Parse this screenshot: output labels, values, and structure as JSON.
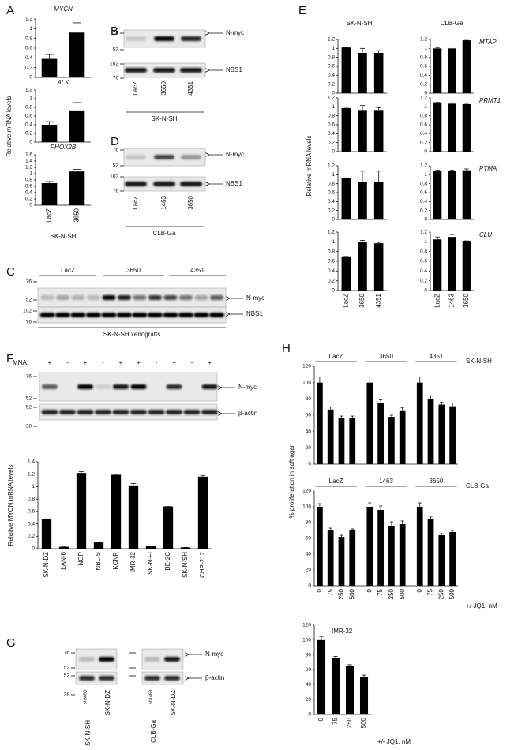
{
  "panel_labels": [
    "A",
    "B",
    "C",
    "D",
    "E",
    "F",
    "G",
    "H"
  ],
  "chart_data": [
    {
      "type": "bar",
      "title": "MYCN",
      "values": [
        0.38,
        0.92
      ],
      "errors": [
        0.09,
        0.2
      ],
      "ylim": [
        0,
        1.2
      ],
      "yticks": [
        0,
        0.2,
        0.4,
        0.6,
        0.8,
        1,
        1.2
      ]
    },
    {
      "type": "bar",
      "title": "ALK",
      "ylabel": "Relative mRNA levels",
      "values": [
        0.4,
        0.73
      ],
      "errors": [
        0.07,
        0.18
      ],
      "ylim": [
        0,
        1.2
      ],
      "yticks": [
        0,
        0.2,
        0.4,
        0.6,
        0.8,
        1,
        1.2
      ]
    },
    {
      "type": "bar",
      "title": "PHOX2B",
      "categories": [
        "LacZ",
        "3650"
      ],
      "xlabel": "SK-N-SH",
      "values": [
        0.7,
        1.07
      ],
      "errors": [
        0.05,
        0.07
      ],
      "ylim": [
        0,
        1.6
      ],
      "yticks": [
        0,
        0.2,
        0.4,
        0.6,
        0.8,
        1,
        1.2,
        1.4,
        1.6
      ]
    },
    {
      "type": "bar",
      "column_title": "SK-N-SH",
      "values": [
        1.02,
        0.9,
        0.9
      ],
      "errors": [
        0,
        0.1,
        0.05
      ],
      "ylim": [
        0,
        1.2
      ],
      "yticks": [
        0,
        0.2,
        0.4,
        0.6,
        0.8,
        1,
        1.2
      ]
    },
    {
      "type": "bar",
      "column_title": "CLB-Ga",
      "title": "MTAP",
      "values": [
        1.0,
        1.0,
        1.18
      ],
      "errors": [
        0.02,
        0.03,
        0
      ],
      "ylim": [
        0,
        1.2
      ],
      "yticks": [
        0,
        0.2,
        0.4,
        0.6,
        0.8,
        1,
        1.2
      ]
    },
    {
      "type": "bar",
      "ylabel": "Relative mRNA levels",
      "values": [
        0.97,
        0.93,
        0.93
      ],
      "errors": [
        0,
        0.1,
        0.05
      ],
      "ylim": [
        0,
        1.2
      ],
      "yticks": [
        0,
        0.2,
        0.4,
        0.6,
        0.8,
        1,
        1.2
      ]
    },
    {
      "type": "bar",
      "title": "PRMT1",
      "values": [
        1.1,
        1.07,
        1.06
      ],
      "errors": [
        0,
        0.02,
        0.02
      ],
      "ylim": [
        0,
        1.2
      ],
      "yticks": [
        0,
        0.2,
        0.4,
        0.6,
        0.8,
        1,
        1.2
      ]
    },
    {
      "type": "bar",
      "values": [
        0.93,
        0.83,
        0.83
      ],
      "errors": [
        0,
        0.25,
        0.25
      ],
      "ylim": [
        0,
        1.2
      ],
      "yticks": [
        0,
        0.2,
        0.4,
        0.6,
        0.8,
        1,
        1.2
      ]
    },
    {
      "type": "bar",
      "title": "PTMA",
      "values": [
        1.08,
        1.08,
        1.1
      ],
      "errors": [
        0.02,
        0.02,
        0.03
      ],
      "ylim": [
        0,
        1.2
      ],
      "yticks": [
        0,
        0.2,
        0.4,
        0.6,
        0.8,
        1,
        1.2
      ]
    },
    {
      "type": "bar",
      "categories": [
        "LacZ",
        "3650",
        "4351"
      ],
      "values": [
        0.7,
        1.0,
        0.97
      ],
      "errors": [
        0,
        0.03,
        0.02
      ],
      "ylim": [
        0,
        1.2
      ],
      "yticks": [
        0,
        0.2,
        0.4,
        0.6,
        0.8,
        1,
        1.2
      ]
    },
    {
      "type": "bar",
      "title": "CLU",
      "categories": [
        "LacZ",
        "1463",
        "3650"
      ],
      "values": [
        1.05,
        1.1,
        1.02
      ],
      "errors": [
        0.05,
        0.05,
        0
      ],
      "ylim": [
        0,
        1.2
      ],
      "yticks": [
        0,
        0.2,
        0.4,
        0.6,
        0.8,
        1,
        1.2
      ]
    },
    {
      "type": "bar",
      "ylabel": "Relative MYCN mRNA levels",
      "categories": [
        "SK-N-DZ",
        "LAN-6",
        "NGP",
        "NBL-S",
        "KCNR",
        "IMR-32",
        "SK-N-FI",
        "BE-2C",
        "SK-N-SH",
        "CHP-212"
      ],
      "values": [
        0.48,
        0.03,
        1.22,
        0.1,
        1.19,
        1.02,
        0.04,
        0.68,
        0.02,
        1.16
      ],
      "errors": [
        0,
        0,
        0.02,
        0,
        0.01,
        0.03,
        0,
        0,
        0,
        0.02
      ],
      "ylim": [
        0,
        1.4
      ],
      "yticks": [
        0,
        0.2,
        0.4,
        0.6,
        0.8,
        1,
        1.2,
        1.4
      ]
    },
    {
      "type": "bar",
      "title": "SK-N-SH",
      "groups": [
        "LacZ",
        "3650",
        "4351"
      ],
      "values": [
        100,
        67,
        57,
        57,
        100,
        75,
        58,
        66,
        100,
        80,
        73,
        71
      ],
      "errors": [
        7,
        3,
        2,
        2,
        7,
        4,
        2,
        3,
        7,
        4,
        3,
        4
      ],
      "ylim": [
        0,
        120
      ],
      "yticks": [
        0,
        20,
        40,
        60,
        80,
        100,
        120
      ]
    },
    {
      "type": "bar",
      "title": "CLB-Ga",
      "ylabel": "% proliferation in soft agar",
      "xlabel": "+/-JQ1, nM",
      "groups": [
        "LacZ",
        "1463",
        "3650"
      ],
      "categories": [
        "0",
        "75",
        "250",
        "500",
        "0",
        "75",
        "250",
        "500",
        "0",
        "75",
        "250",
        "500"
      ],
      "values": [
        100,
        71,
        62,
        71,
        100,
        96,
        76,
        78,
        100,
        84,
        64,
        68
      ],
      "errors": [
        4,
        2,
        2,
        1,
        5,
        5,
        5,
        4,
        5,
        3,
        2,
        2
      ],
      "ylim": [
        0,
        120
      ],
      "yticks": [
        0,
        20,
        40,
        60,
        80,
        100,
        120
      ]
    },
    {
      "type": "bar",
      "title": "IMR-32",
      "xlabel": "+/- JQ1, nM",
      "categories": [
        "0",
        "75",
        "250",
        "500"
      ],
      "values": [
        100,
        76,
        65,
        51
      ],
      "errors": [
        5,
        2,
        2,
        2
      ],
      "ylim": [
        0,
        120
      ],
      "yticks": [
        0,
        20,
        40,
        60,
        80,
        100,
        120
      ]
    }
  ],
  "blots": {
    "B": {
      "markers": [
        76,
        52,
        102,
        76
      ],
      "bands": [
        "N-myc",
        "NBS1"
      ],
      "lanes": [
        "LacZ",
        "3650",
        "4351"
      ],
      "sample": "SK-N-SH"
    },
    "C": {
      "markers": [
        76,
        52,
        102,
        76
      ],
      "bands": [
        "N-myc",
        "NBS1"
      ],
      "groups": [
        "LacZ",
        "3650",
        "4351"
      ],
      "sample": "SK-N-SH xenografts"
    },
    "D": {
      "markers": [
        76,
        52,
        102,
        76
      ],
      "bands": [
        "N-myc",
        "NBS1"
      ],
      "lanes": [
        "LacZ",
        "1463",
        "3650"
      ],
      "sample": "CLB-Ga"
    },
    "F": {
      "mna_label": "MNA:",
      "mna": [
        "+",
        "-",
        "+",
        "-",
        "+",
        "+",
        "-",
        "+",
        "-",
        "+"
      ],
      "markers": [
        76,
        52,
        52,
        38
      ],
      "bands": [
        "N-myc",
        "β-actin"
      ]
    },
    "G": {
      "markers": [
        76,
        52,
        52,
        38
      ],
      "bands": [
        "N-myc",
        "β-actin"
      ],
      "lanes": [
        "SK-N-SH",
        "SK-N-DZ",
        "CLB-Ga",
        "SK-N-DZ"
      ],
      "superscripts": {
        "0": "sh3650",
        "2": "sh1463"
      }
    }
  }
}
